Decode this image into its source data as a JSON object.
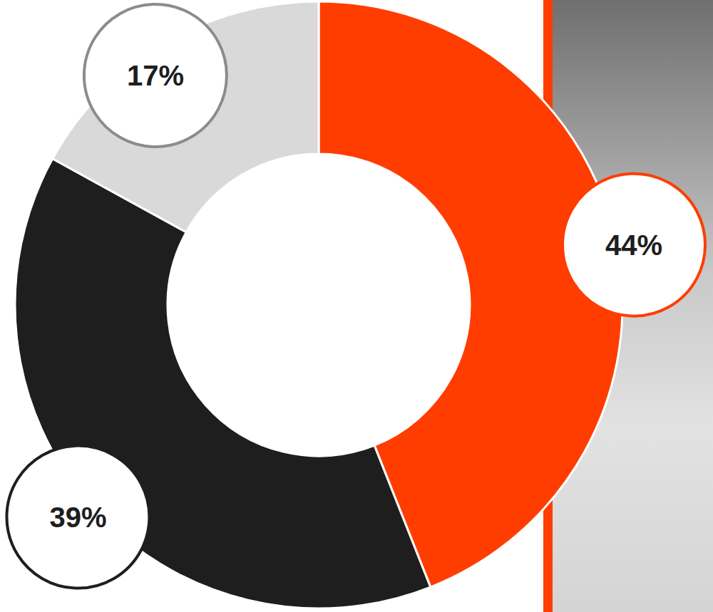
{
  "chart_data": {
    "type": "pie",
    "values": [
      44,
      39,
      17
    ],
    "value_labels": [
      "44%",
      "39%",
      "17%"
    ],
    "colors": [
      "#ff3d00",
      "#1e1e1e",
      "#d9d9d9"
    ],
    "data_labels": true
  }
}
